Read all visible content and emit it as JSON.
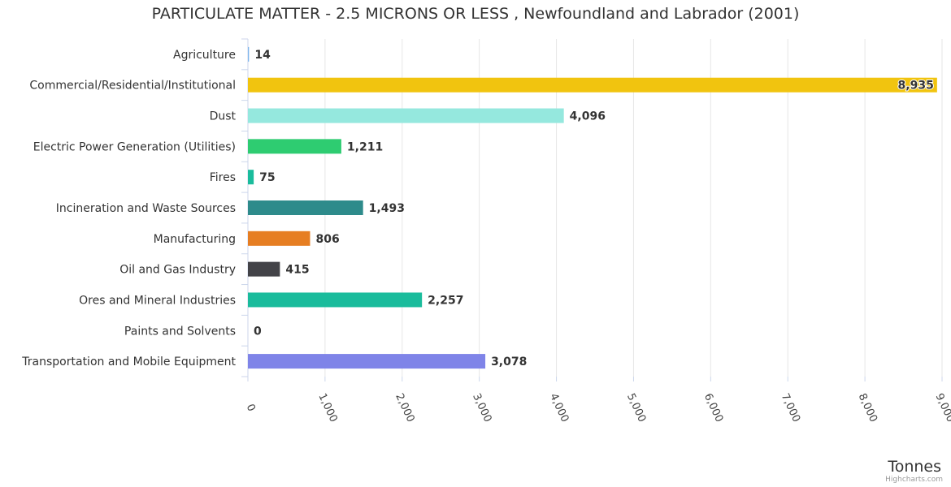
{
  "chart_data": {
    "type": "bar",
    "orientation": "horizontal",
    "title": "PARTICULATE MATTER - 2.5 MICRONS OR LESS , Newfoundland and Labrador (2001)",
    "unit_label": "Tonnes",
    "credits": "Highcharts.com",
    "categories": [
      "Agriculture",
      "Commercial/Residential/Institutional",
      "Dust",
      "Electric Power Generation (Utilities)",
      "Fires",
      "Incineration and Waste Sources",
      "Manufacturing",
      "Oil and Gas Industry",
      "Ores and Mineral Industries",
      "Paints and Solvents",
      "Transportation and Mobile Equipment"
    ],
    "values": [
      14,
      8935,
      4096,
      1211,
      75,
      1493,
      806,
      415,
      2257,
      0,
      3078
    ],
    "value_labels": [
      "14",
      "8,935",
      "4,096",
      "1,211",
      "75",
      "1,493",
      "806",
      "415",
      "2,257",
      "0",
      "3,078"
    ],
    "colors": [
      "#7cb5ec",
      "#f1c40f",
      "#95e8de",
      "#2ecc71",
      "#1abc9c",
      "#2e8b8b",
      "#e67e22",
      "#434348",
      "#1abc9c",
      "#7cb5ec",
      "#7f84e8"
    ],
    "xlim": [
      0,
      9000
    ],
    "ticks": [
      0,
      1000,
      2000,
      3000,
      4000,
      5000,
      6000,
      7000,
      8000,
      9000
    ],
    "tick_labels": [
      "0",
      "1,000",
      "2,000",
      "3,000",
      "4,000",
      "5,000",
      "6,000",
      "7,000",
      "8,000",
      "9,000"
    ],
    "grid": true,
    "legend": "none"
  }
}
